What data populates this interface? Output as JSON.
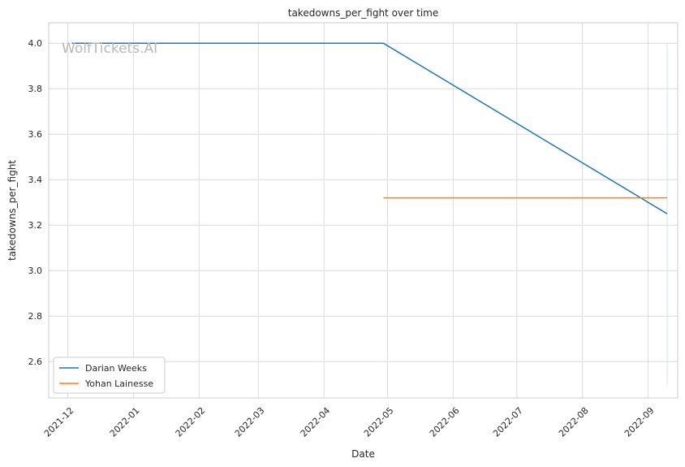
{
  "watermark": "WolfTickets.AI",
  "chart_data": {
    "type": "line",
    "title": "takedowns_per_fight over time",
    "xlabel": "Date",
    "ylabel": "takedowns_per_fight",
    "x_range": [
      "2021-11-22",
      "2022-09-15"
    ],
    "ylim": [
      2.44,
      4.09
    ],
    "y_ticks": [
      2.6,
      2.8,
      3.0,
      3.2,
      3.4,
      3.6,
      3.8,
      4.0
    ],
    "y_tick_labels": [
      "2.6",
      "2.8",
      "3.0",
      "3.2",
      "3.4",
      "3.6",
      "3.8",
      "4.0"
    ],
    "x_ticks": [
      "2021-12-01",
      "2022-01-01",
      "2022-02-01",
      "2022-03-01",
      "2022-04-01",
      "2022-05-01",
      "2022-06-01",
      "2022-07-01",
      "2022-08-01",
      "2022-09-01"
    ],
    "x_tick_labels": [
      "2021-12",
      "2022-01",
      "2022-02",
      "2022-03",
      "2022-04",
      "2022-05",
      "2022-06",
      "2022-07",
      "2022-08",
      "2022-09"
    ],
    "grid": true,
    "legend_position": "lower-left",
    "series": [
      {
        "name": "Darian Weeks",
        "color": "#1f77b4",
        "points": [
          {
            "x": "2021-12-03",
            "y": 4.0
          },
          {
            "x": "2022-04-29",
            "y": 4.0
          },
          {
            "x": "2022-09-10",
            "y": 3.25
          }
        ]
      },
      {
        "name": "Yohan Lainesse",
        "color": "#ff7f0e",
        "points": [
          {
            "x": "2022-04-29",
            "y": 3.32
          },
          {
            "x": "2022-09-10",
            "y": 3.32
          }
        ]
      }
    ],
    "vertical_marker": {
      "x": "2022-09-10",
      "y_range": [
        2.5,
        4.0
      ],
      "color": "#cfe3dc"
    }
  }
}
